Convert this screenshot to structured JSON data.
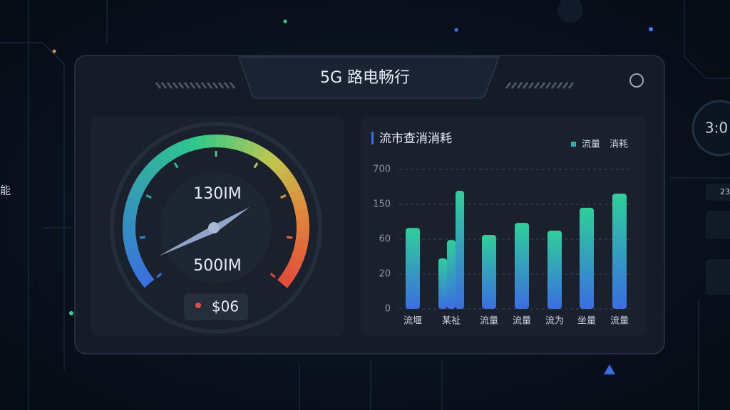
{
  "header": {
    "title": "5G 路电畅行"
  },
  "gauge": {
    "top_reading": "130IM",
    "bottom_reading": "500IM",
    "badge": "$06"
  },
  "chart_data": {
    "type": "bar",
    "title": "流市查消消耗",
    "legend": [
      "流量",
      "消耗"
    ],
    "categories": [
      "流堰",
      null,
      "某祉",
      null,
      "流量",
      "流量",
      "流为",
      "坐量",
      "流量"
    ],
    "values": [
      89,
      38,
      59,
      363,
      71,
      102,
      82,
      141,
      318
    ],
    "ylim": [
      0,
      700
    ],
    "yticks": [
      0,
      20,
      60,
      150,
      700
    ],
    "grid": true
  },
  "side": {
    "clock": "3:0",
    "stat": "23",
    "left_text": "能"
  }
}
